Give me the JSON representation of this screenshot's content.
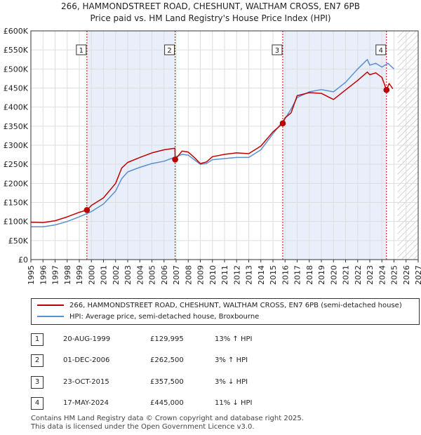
{
  "title_line1": "266, HAMMONDSTREET ROAD, CHESHUNT, WALTHAM CROSS, EN7 6PB",
  "title_line2": "Price paid vs. HM Land Registry's House Price Index (HPI)",
  "colors": {
    "property": "#c00000",
    "hpi": "#5b8fd0",
    "shade": "#e8effa",
    "marker_line": "#cc0000"
  },
  "chart_data": {
    "type": "line",
    "xlim": [
      1995,
      2027
    ],
    "ylim": [
      0,
      600000
    ],
    "y_ticks": [
      {
        "value": 0,
        "label": "£0"
      },
      {
        "value": 50000,
        "label": "£50K"
      },
      {
        "value": 100000,
        "label": "£100K"
      },
      {
        "value": 150000,
        "label": "£150K"
      },
      {
        "value": 200000,
        "label": "£200K"
      },
      {
        "value": 250000,
        "label": "£250K"
      },
      {
        "value": 300000,
        "label": "£300K"
      },
      {
        "value": 350000,
        "label": "£350K"
      },
      {
        "value": 400000,
        "label": "£400K"
      },
      {
        "value": 450000,
        "label": "£450K"
      },
      {
        "value": 500000,
        "label": "£500K"
      },
      {
        "value": 550000,
        "label": "£550K"
      },
      {
        "value": 600000,
        "label": "£600K"
      }
    ],
    "x_ticks": [
      "1995",
      "1996",
      "1997",
      "1998",
      "1999",
      "2000",
      "2001",
      "2002",
      "2003",
      "2004",
      "2005",
      "2006",
      "2007",
      "2008",
      "2009",
      "2010",
      "2011",
      "2012",
      "2013",
      "2014",
      "2015",
      "2016",
      "2017",
      "2018",
      "2019",
      "2020",
      "2021",
      "2022",
      "2023",
      "2024",
      "2025",
      "2026",
      "2027"
    ],
    "shaded_ranges": [
      [
        1999.63,
        2006.92
      ],
      [
        2015.81,
        2024.38
      ]
    ],
    "future_hatch_from": 2025.3,
    "series": [
      {
        "name": "266, HAMMONDSTREET ROAD, CHESHUNT, WALTHAM CROSS, EN7 6PB (semi-detached house)",
        "x": [
          1995,
          1996,
          1997,
          1998,
          1999,
          1999.63,
          2000,
          2001,
          2002,
          2002.5,
          2003,
          2004,
          2005,
          2006,
          2006.9,
          2006.92,
          2007.5,
          2008,
          2008.5,
          2009,
          2009.5,
          2010,
          2011,
          2012,
          2013,
          2014,
          2015,
          2015.81,
          2016,
          2016.5,
          2017,
          2018,
          2019,
          2020,
          2021,
          2022,
          2022.8,
          2023,
          2023.5,
          2024,
          2024.38,
          2024.6,
          2024.9
        ],
        "y": [
          98000,
          97000,
          102000,
          112000,
          124000,
          129995,
          142000,
          162000,
          200000,
          240000,
          255000,
          268000,
          280000,
          288000,
          292000,
          262500,
          285000,
          282000,
          268000,
          252000,
          256000,
          270000,
          276000,
          280000,
          278000,
          298000,
          335000,
          357500,
          372000,
          385000,
          430000,
          438000,
          436000,
          420000,
          445000,
          470000,
          492000,
          485000,
          490000,
          478000,
          445000,
          462000,
          448000
        ]
      },
      {
        "name": "HPI: Average price, semi-detached house, Broxbourne",
        "x": [
          1995,
          1996,
          1997,
          1998,
          1999,
          2000,
          2001,
          2002,
          2002.5,
          2003,
          2004,
          2005,
          2006,
          2007,
          2007.5,
          2008,
          2008.5,
          2009,
          2009.5,
          2010,
          2011,
          2012,
          2013,
          2014,
          2015,
          2016,
          2016.5,
          2017,
          2018,
          2019,
          2020,
          2021,
          2022,
          2022.8,
          2023,
          2023.5,
          2024,
          2024.5,
          2025
        ],
        "y": [
          86000,
          86000,
          91000,
          100000,
          112000,
          126000,
          146000,
          180000,
          212000,
          230000,
          242000,
          252000,
          258000,
          270000,
          276000,
          274000,
          262000,
          250000,
          252000,
          262000,
          265000,
          268000,
          268000,
          288000,
          330000,
          370000,
          395000,
          425000,
          440000,
          446000,
          440000,
          465000,
          500000,
          525000,
          510000,
          515000,
          505000,
          515000,
          500000
        ]
      }
    ],
    "sales": [
      {
        "id": "1",
        "x": 1999.63,
        "value": 129995
      },
      {
        "id": "2",
        "x": 2006.92,
        "value": 262500
      },
      {
        "id": "3",
        "x": 2015.81,
        "value": 357500
      },
      {
        "id": "4",
        "x": 2024.38,
        "value": 445000
      }
    ]
  },
  "legend": {
    "property": "266, HAMMONDSTREET ROAD, CHESHUNT, WALTHAM CROSS, EN7 6PB (semi-detached house)",
    "hpi": "HPI: Average price, semi-detached house, Broxbourne"
  },
  "sales_table": [
    {
      "num": "1",
      "date": "20-AUG-1999",
      "price": "£129,995",
      "hpi": "13% ↑ HPI"
    },
    {
      "num": "2",
      "date": "01-DEC-2006",
      "price": "£262,500",
      "hpi": "3% ↑ HPI"
    },
    {
      "num": "3",
      "date": "23-OCT-2015",
      "price": "£357,500",
      "hpi": "3% ↓ HPI"
    },
    {
      "num": "4",
      "date": "17-MAY-2024",
      "price": "£445,000",
      "hpi": "11% ↓ HPI"
    }
  ],
  "footer_line1": "Contains HM Land Registry data © Crown copyright and database right 2025.",
  "footer_line2": "This data is licensed under the Open Government Licence v3.0."
}
